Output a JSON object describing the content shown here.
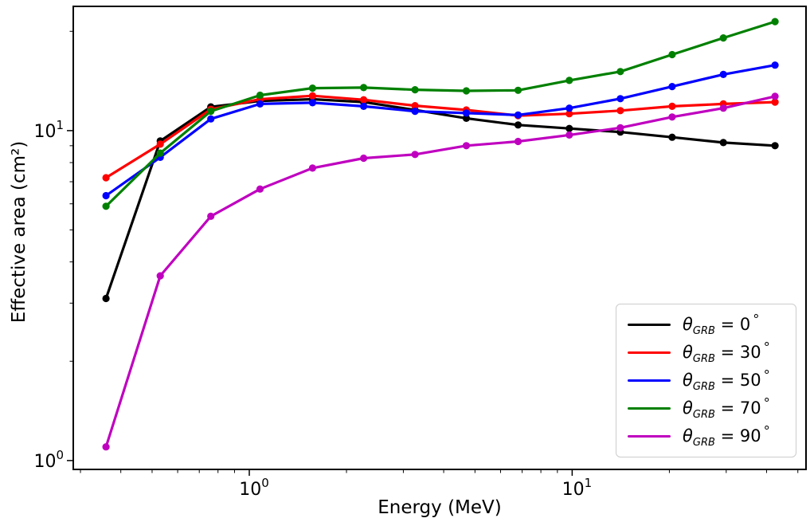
{
  "chart_data": {
    "type": "line",
    "title": "",
    "xlabel": "Energy (MeV)",
    "ylabel": "Effective area (cm²)",
    "xscale": "log",
    "yscale": "log",
    "xlim": [
      0.285,
      53
    ],
    "ylim": [
      0.94,
      23.8
    ],
    "grid": false,
    "legend_position": "lower right",
    "tick_label_base": "10",
    "x_major_ticks": [
      1,
      10
    ],
    "y_major_ticks": [
      1,
      10
    ],
    "x": [
      0.36,
      0.53,
      0.76,
      1.08,
      1.57,
      2.26,
      3.26,
      4.7,
      6.8,
      9.8,
      14.1,
      20.4,
      29.4,
      42.5
    ],
    "series": [
      {
        "name": "theta-grb-0",
        "color": "#000000",
        "legend": {
          "symbol": "θ",
          "subscript": "GRB",
          "equals": "=",
          "angle": "0",
          "degree": "°"
        },
        "values": [
          3.1,
          9.3,
          11.8,
          12.3,
          12.45,
          12.2,
          11.55,
          10.9,
          10.4,
          10.15,
          9.9,
          9.55,
          9.2,
          9.0
        ]
      },
      {
        "name": "theta-grb-30",
        "color": "#ff0000",
        "legend": {
          "symbol": "θ",
          "subscript": "GRB",
          "equals": "=",
          "angle": "30",
          "degree": "°"
        },
        "values": [
          7.2,
          9.1,
          11.6,
          12.45,
          12.75,
          12.4,
          11.9,
          11.55,
          11.1,
          11.25,
          11.5,
          11.85,
          12.05,
          12.2
        ]
      },
      {
        "name": "theta-grb-50",
        "color": "#0000ff",
        "legend": {
          "symbol": "θ",
          "subscript": "GRB",
          "equals": "=",
          "angle": "50",
          "degree": "°"
        },
        "values": [
          6.35,
          8.3,
          10.85,
          12.05,
          12.15,
          11.85,
          11.45,
          11.3,
          11.15,
          11.7,
          12.5,
          13.6,
          14.8,
          15.8
        ]
      },
      {
        "name": "theta-grb-70",
        "color": "#008000",
        "legend": {
          "symbol": "θ",
          "subscript": "GRB",
          "equals": "=",
          "angle": "70",
          "degree": "°"
        },
        "values": [
          5.9,
          8.55,
          11.45,
          12.8,
          13.45,
          13.5,
          13.3,
          13.2,
          13.25,
          14.2,
          15.1,
          17.0,
          19.1,
          21.4
        ]
      },
      {
        "name": "theta-grb-90",
        "color": "#bf00bf",
        "legend": {
          "symbol": "θ",
          "subscript": "GRB",
          "equals": "=",
          "angle": "90",
          "degree": "°"
        },
        "values": [
          1.1,
          3.63,
          5.5,
          6.65,
          7.7,
          8.25,
          8.47,
          9.0,
          9.27,
          9.7,
          10.2,
          11.0,
          11.7,
          12.7
        ]
      }
    ]
  }
}
